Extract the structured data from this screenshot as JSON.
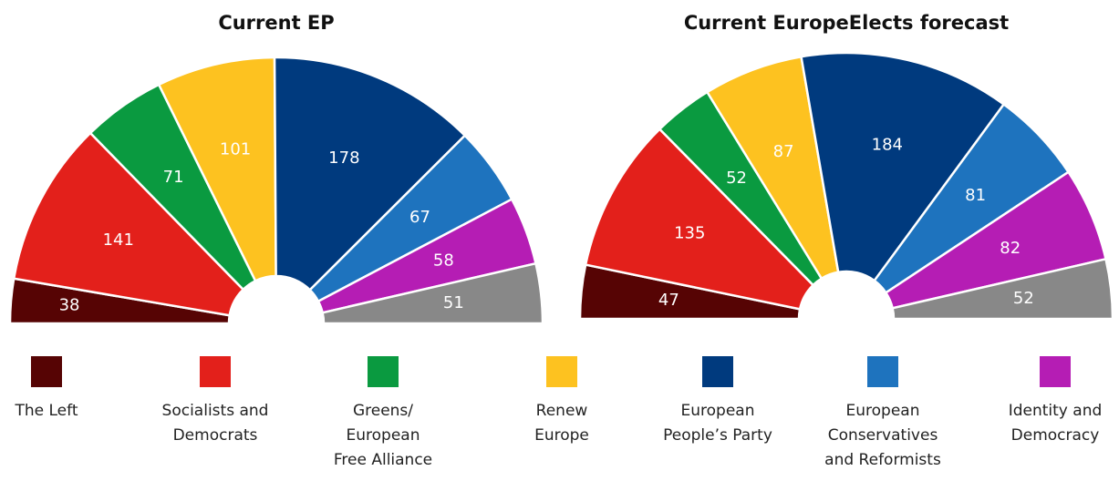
{
  "chart_data": [
    {
      "type": "pie",
      "shape": "semicircle",
      "title": "Current EP",
      "categories": [
        "The Left",
        "Socialists and\nDemocrats",
        "Greens/\nEuropean\nFree Alliance",
        "Renew\nEurope",
        "European\nPeople’s Party",
        "European\nConservatives\nand Reformists",
        "Identity and\nDemocracy",
        null
      ],
      "values": [
        38,
        141,
        71,
        101,
        178,
        67,
        58,
        51
      ],
      "colors": [
        "#560404",
        "#e3201b",
        "#0a9a40",
        "#fdc220",
        "#003a7e",
        "#1e73be",
        "#b51db4",
        "#888888"
      ]
    },
    {
      "type": "pie",
      "shape": "semicircle",
      "title": "Current EuropeElects forecast",
      "categories": [
        "The Left",
        "Socialists and\nDemocrats",
        "Greens/\nEuropean\nFree Alliance",
        "Renew\nEurope",
        "European\nPeople’s Party",
        "European\nConservatives\nand Reformists",
        "Identity and\nDemocracy",
        null
      ],
      "values": [
        47,
        135,
        52,
        87,
        184,
        81,
        82,
        52
      ],
      "colors": [
        "#560404",
        "#e3201b",
        "#0a9a40",
        "#fdc220",
        "#003a7e",
        "#1e73be",
        "#b51db4",
        "#888888"
      ]
    }
  ]
}
